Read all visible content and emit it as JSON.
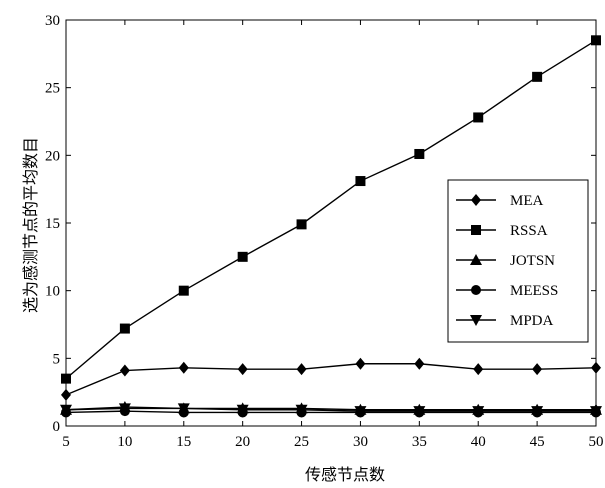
{
  "chart_data": {
    "type": "line",
    "title": "",
    "xlabel": "传感节点数",
    "ylabel": "选为感测节点的平均数目",
    "x": [
      5,
      10,
      15,
      20,
      25,
      30,
      35,
      40,
      45,
      50
    ],
    "xlim": [
      5,
      50
    ],
    "ylim": [
      0,
      30
    ],
    "xticks": [
      5,
      10,
      15,
      20,
      25,
      30,
      35,
      40,
      45,
      50
    ],
    "yticks": [
      0,
      5,
      10,
      15,
      20,
      25,
      30
    ],
    "grid": false,
    "legend_position": "right",
    "series": [
      {
        "name": "MEA",
        "marker": "diamond",
        "values": [
          2.3,
          4.1,
          4.3,
          4.2,
          4.2,
          4.6,
          4.6,
          4.2,
          4.2,
          4.3
        ]
      },
      {
        "name": "RSSA",
        "marker": "square",
        "values": [
          3.5,
          7.2,
          10.0,
          12.5,
          14.9,
          18.1,
          20.1,
          22.8,
          25.8,
          28.5
        ]
      },
      {
        "name": "JOTSN",
        "marker": "triangle-up",
        "values": [
          1.2,
          1.4,
          1.3,
          1.3,
          1.3,
          1.2,
          1.2,
          1.2,
          1.2,
          1.2
        ]
      },
      {
        "name": "MEESS",
        "marker": "circle",
        "values": [
          1.0,
          1.1,
          1.0,
          1.0,
          1.0,
          1.0,
          1.0,
          1.0,
          1.0,
          1.0
        ]
      },
      {
        "name": "MPDA",
        "marker": "triangle-down",
        "values": [
          1.2,
          1.3,
          1.3,
          1.2,
          1.2,
          1.1,
          1.1,
          1.1,
          1.1,
          1.1
        ]
      }
    ]
  }
}
